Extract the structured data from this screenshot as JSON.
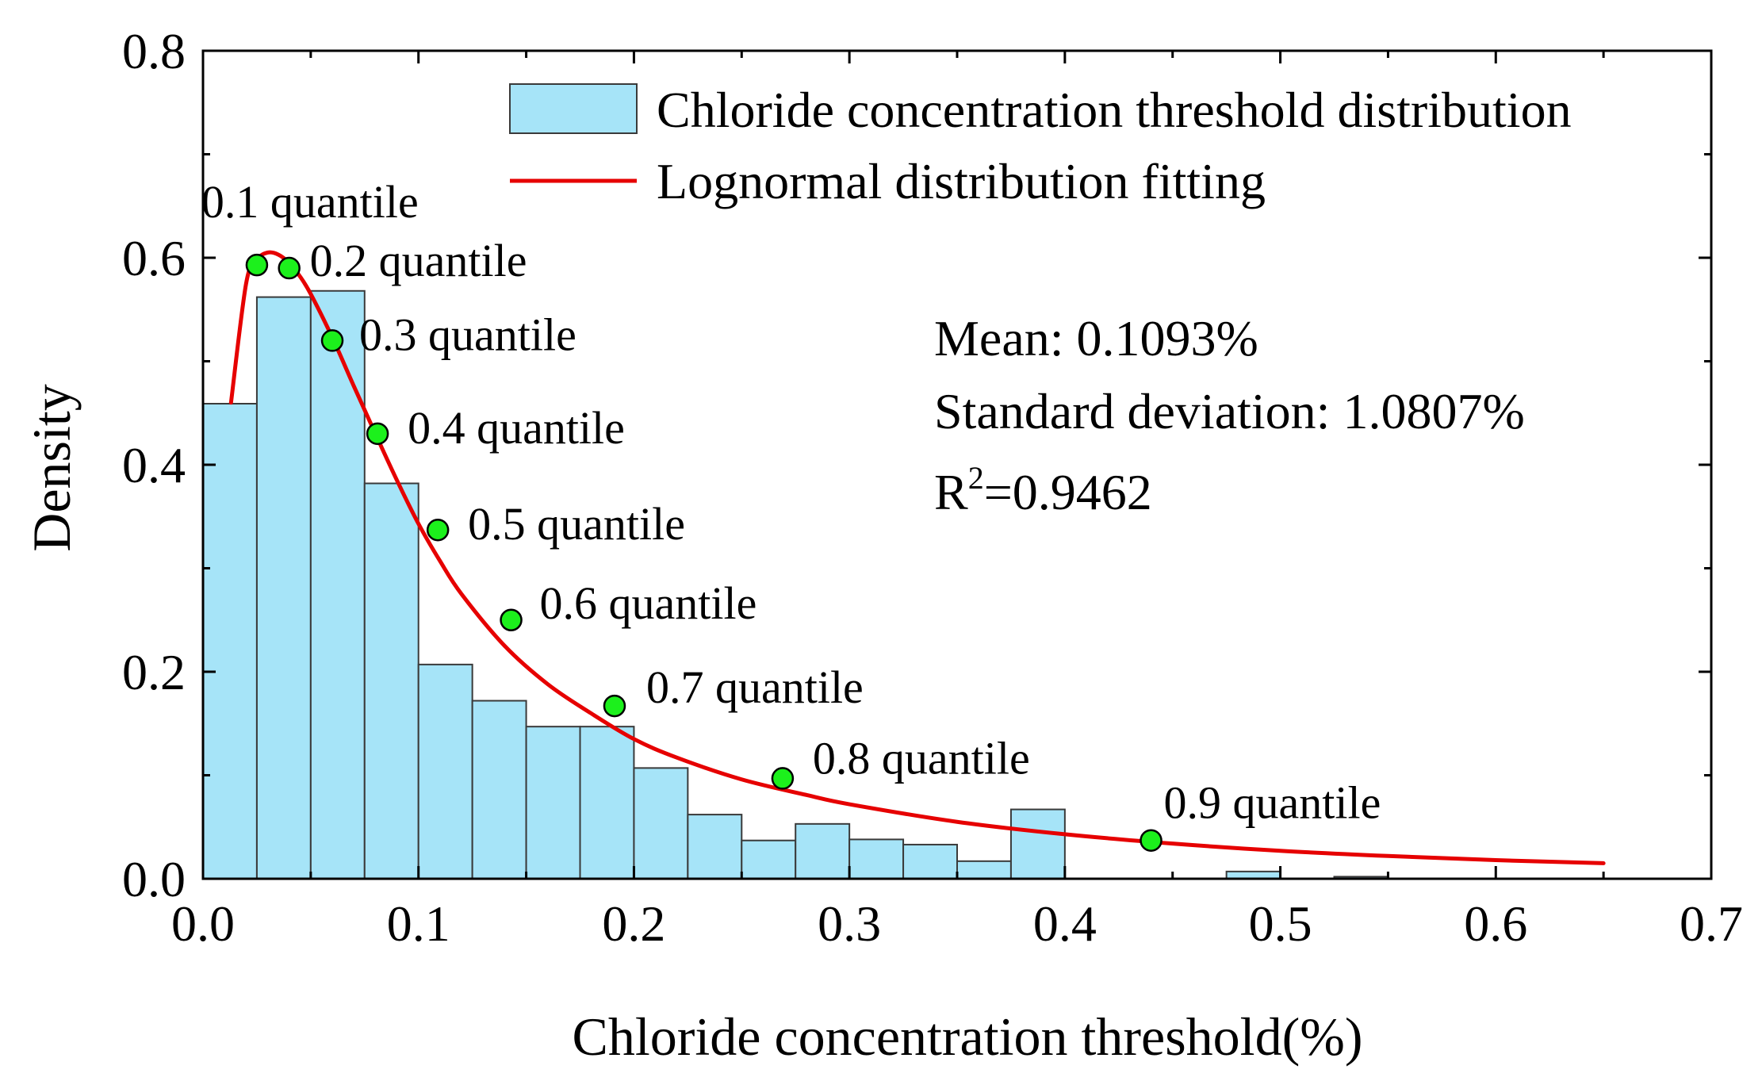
{
  "chart_data": {
    "type": "bar",
    "xlabel": "Chloride concentration threshold(%)",
    "ylabel": "Density",
    "xlim": [
      0,
      0.7
    ],
    "ylim": [
      0,
      0.8
    ],
    "xticks": [
      "0.0",
      "0.1",
      "0.2",
      "0.3",
      "0.4",
      "0.5",
      "0.6",
      "0.7"
    ],
    "yticks": [
      "0.0",
      "0.2",
      "0.4",
      "0.6",
      "0.8"
    ],
    "legend": {
      "position": "top-right",
      "entries": [
        "Chloride concentration threshold distribution",
        "Lognormal distribution fitting"
      ]
    },
    "histogram": {
      "name": "Chloride concentration threshold distribution",
      "bin_width": 0.025,
      "values": [
        0.459,
        0.562,
        0.568,
        0.382,
        0.207,
        0.172,
        0.147,
        0.147,
        0.107,
        0.062,
        0.037,
        0.053,
        0.038,
        0.033,
        0.017,
        0.067,
        0,
        0,
        0,
        0.007,
        0,
        0.002
      ]
    },
    "fit_curve": {
      "name": "Lognormal distribution fitting",
      "x": [
        0.013,
        0.02,
        0.025,
        0.03,
        0.035,
        0.04,
        0.045,
        0.05,
        0.06,
        0.07,
        0.08,
        0.09,
        0.1,
        0.11,
        0.12,
        0.14,
        0.16,
        0.18,
        0.2,
        0.22,
        0.25,
        0.28,
        0.3,
        0.35,
        0.4,
        0.45,
        0.5,
        0.55,
        0.6,
        0.65
      ],
      "y": [
        0.46,
        0.575,
        0.598,
        0.605,
        0.603,
        0.595,
        0.582,
        0.565,
        0.523,
        0.476,
        0.43,
        0.385,
        0.343,
        0.307,
        0.275,
        0.225,
        0.188,
        0.16,
        0.135,
        0.117,
        0.096,
        0.081,
        0.072,
        0.055,
        0.043,
        0.034,
        0.027,
        0.022,
        0.018,
        0.015
      ]
    },
    "quantiles": [
      {
        "label": "0.1 quantile",
        "x": 0.025,
        "y": 0.593
      },
      {
        "label": "0.2 quantile",
        "x": 0.04,
        "y": 0.59
      },
      {
        "label": "0.3 quantile",
        "x": 0.06,
        "y": 0.52
      },
      {
        "label": "0.4 quantile",
        "x": 0.081,
        "y": 0.43
      },
      {
        "label": "0.5 quantile",
        "x": 0.109,
        "y": 0.337
      },
      {
        "label": "0.6 quantile",
        "x": 0.143,
        "y": 0.25
      },
      {
        "label": "0.7 quantile",
        "x": 0.191,
        "y": 0.167
      },
      {
        "label": "0.8 quantile",
        "x": 0.269,
        "y": 0.097
      },
      {
        "label": "0.9 quantile",
        "x": 0.44,
        "y": 0.037
      }
    ],
    "annotations": {
      "mean": "Mean: 0.1093%",
      "std": "Standard deviation: 1.0807%",
      "r2_prefix": "R",
      "r2_sup": "2",
      "r2_value": "=0.9462"
    }
  }
}
